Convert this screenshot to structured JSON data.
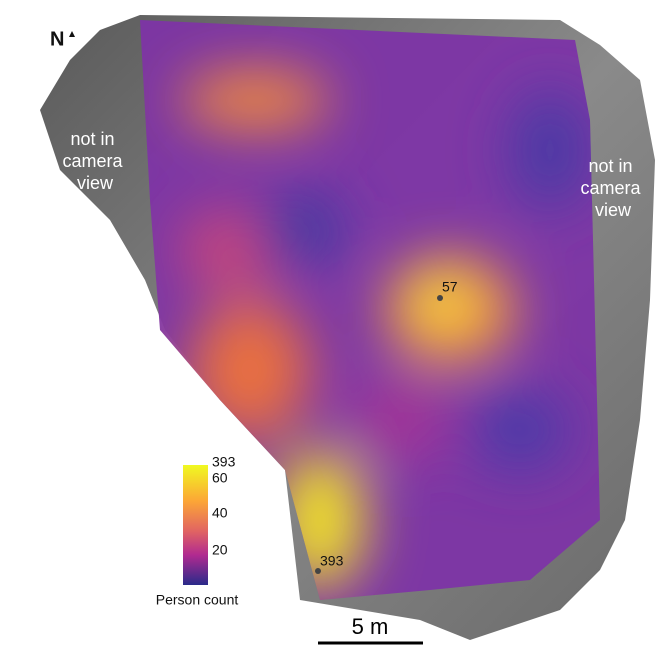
{
  "compass": {
    "label": "N"
  },
  "regions": [
    {
      "lines": [
        "not in",
        "camera",
        "view"
      ]
    },
    {
      "lines": [
        "not in",
        "camera",
        "view"
      ]
    }
  ],
  "points": [
    {
      "label": "57"
    },
    {
      "label": "393"
    }
  ],
  "colorbar": {
    "ticks": [
      "393",
      "60",
      "40",
      "20"
    ],
    "title": "Person count"
  },
  "scale_bar": {
    "label": "5 m"
  }
}
